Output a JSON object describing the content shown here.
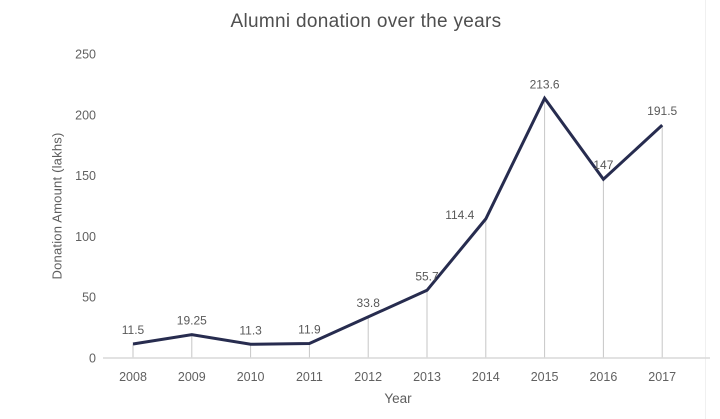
{
  "page": {
    "background": "#ffffff"
  },
  "chart_data": {
    "type": "line",
    "title": "Alumni donation over the years",
    "xlabel": "Year",
    "ylabel": "Donation Amount (lakhs)",
    "categories": [
      "2008",
      "2009",
      "2010",
      "2011",
      "2012",
      "2013",
      "2014",
      "2015",
      "2016",
      "2017"
    ],
    "values": [
      11.5,
      19.25,
      11.3,
      11.9,
      33.8,
      55.7,
      114.4,
      213.6,
      147,
      191.5
    ],
    "data_labels": [
      "11.5",
      "19.25",
      "11.3",
      "11.9",
      "33.8",
      "55.7",
      "114.4",
      "213.6",
      "147",
      "191.5"
    ],
    "yticks": [
      0,
      50,
      100,
      150,
      200,
      250
    ],
    "ylim": [
      0,
      250
    ],
    "grid": "none",
    "drop_lines": true,
    "legend": "none",
    "line_color": "#272c4f",
    "data_label_color": "#595959",
    "tick_label_color": "#616161",
    "axis_line_color": "#d9d9d9",
    "drop_line_color": "#c6c6c6",
    "frame_line_color": "#f0f0f0",
    "label_offsets": {
      "6": [
        -26,
        0
      ]
    }
  }
}
